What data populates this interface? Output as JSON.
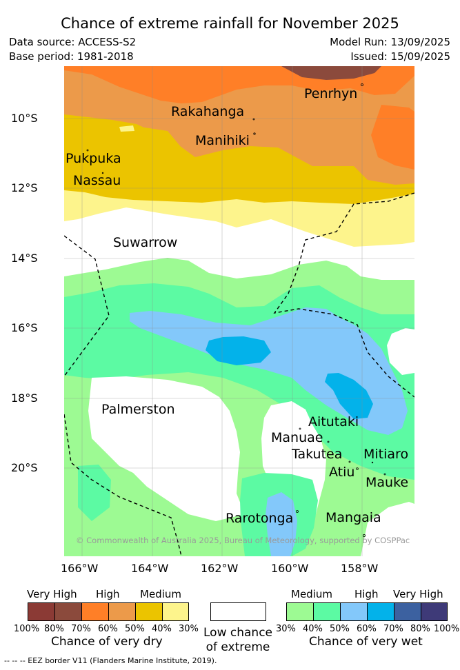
{
  "title": "Chance of extreme rainfall for November 2025",
  "meta": {
    "data_source": "Data source: ACCESS-S2",
    "base_period": "Base period: 1981-2018",
    "model_run": "Model Run: 13/09/2025",
    "issued": "Issued: 15/09/2025"
  },
  "map": {
    "lat_labels": [
      "10°S",
      "12°S",
      "14°S",
      "16°S",
      "18°S",
      "20°S"
    ],
    "lon_labels": [
      "166°W",
      "164°W",
      "162°W",
      "160°W",
      "158°W"
    ],
    "places": {
      "penrhyn": "Penrhyn",
      "rakahanga": "Rakahanga",
      "manihiki": "Manihiki",
      "pukapuka": "Pukpuka",
      "nassau": "Nassau",
      "suwarrow": "Suwarrow",
      "palmerston": "Palmerston",
      "aitutaki": "Aitutaki",
      "manuae": "Manuae",
      "takutea": "Takutea",
      "mitiaro": "Mitiaro",
      "atiu": "Atiu",
      "mauke": "Mauke",
      "rarotonga": "Rarotonga",
      "mangaia": "Mangaia"
    },
    "copyright": "© Commonwealth of Australia 2025, Bureau of Meteorology, supported by COSPPac"
  },
  "colors": {
    "dry_100": "#8b3a35",
    "dry_80": "#8b4a3c",
    "dry_70": "#ff7f27",
    "dry_60": "#ec9a4a",
    "dry_50": "#ebc400",
    "dry_40": "#fdf48c",
    "low": "#ffffff",
    "wet_30": "#9dfa93",
    "wet_40": "#5cfaa3",
    "wet_50": "#83c8fa",
    "wet_60": "#03b2ea",
    "wet_70": "#3c61a0",
    "wet_80": "#3e3a78"
  },
  "legend": {
    "dry": {
      "headers": [
        "Very High",
        "High",
        "Medium"
      ],
      "ticks": [
        "100%",
        "80%",
        "70%",
        "60%",
        "50%",
        "40%",
        "30%"
      ],
      "caption": "Chance of very dry"
    },
    "low": {
      "caption_line1": "Low chance",
      "caption_line2": "of extreme"
    },
    "wet": {
      "headers": [
        "Medium",
        "High",
        "Very High"
      ],
      "ticks": [
        "30%",
        "40%",
        "50%",
        "60%",
        "70%",
        "80%",
        "100%"
      ],
      "caption": "Chance of very wet"
    }
  },
  "footer": "--  --  -- EEZ border V11 (Flanders Marine Institute, 2019)."
}
